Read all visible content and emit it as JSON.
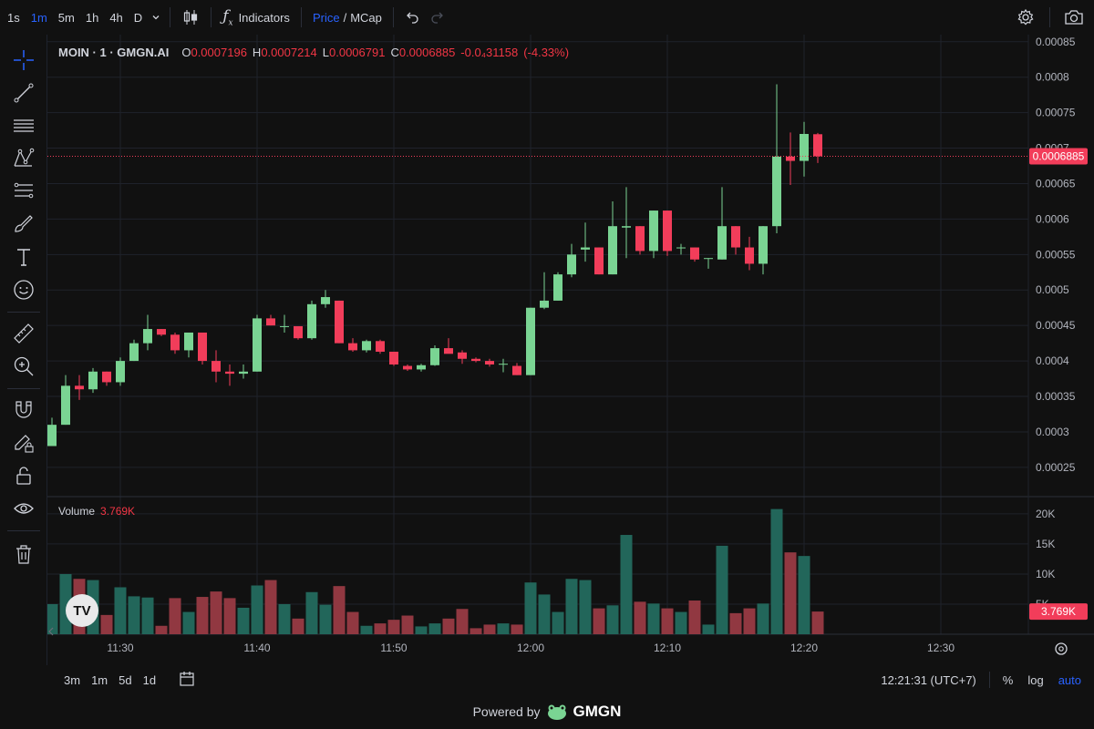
{
  "toolbar": {
    "intervals": [
      "1s",
      "1m",
      "5m",
      "1h",
      "4h",
      "D"
    ],
    "active_interval": "1m",
    "indicators_label": "Indicators",
    "price_label": "Price",
    "mcap_label": "MCap",
    "price_mcap_sep": "/"
  },
  "legend": {
    "symbol": "MOIN · 1 · GMGN.AI",
    "open_label": "O",
    "open": "0.0007196",
    "high_label": "H",
    "high": "0.0007214",
    "low_label": "L",
    "low": "0.0006791",
    "close_label": "C",
    "close": "0.0006885",
    "change": "-0.0₄31158",
    "change_pct": "(-4.33%)"
  },
  "volume_legend": {
    "label": "Volume",
    "value": "3.769K"
  },
  "price_badge": "0.0006885",
  "volume_badge": "3.769K",
  "bottom_bar": {
    "ranges": [
      "3m",
      "1m",
      "5d",
      "1d"
    ],
    "time": "12:21:31 (UTC+7)",
    "pct": "%",
    "log": "log",
    "auto": "auto"
  },
  "footer": {
    "powered": "Powered by",
    "brand": "GMGN"
  },
  "colors": {
    "up": "#7ad493",
    "down": "#f23d5a",
    "vol_up": "#22665a",
    "vol_down": "#913841",
    "accent": "#2962ff"
  },
  "chart_data": {
    "type": "candlestick",
    "title": "MOIN · 1 · GMGN.AI",
    "xlabel": "",
    "ylabel": "",
    "x_ticks": [
      "11:30",
      "11:40",
      "11:50",
      "12:00",
      "12:10",
      "12:20",
      "12:30"
    ],
    "y_ticks": [
      "0.00085",
      "0.0008",
      "0.00075",
      "0.0007",
      "0.00065",
      "0.0006",
      "0.00055",
      "0.0005",
      "0.00045",
      "0.0004",
      "0.00035",
      "0.0003",
      "0.00025"
    ],
    "ylim": [
      0.00021,
      0.00086
    ],
    "volume_ticks": [
      "20K",
      "15K",
      "10K",
      "5K"
    ],
    "volume_ylim": [
      0,
      21500
    ],
    "current_price": 0.0006885,
    "current_volume": 3769,
    "grid": true,
    "candles": [
      {
        "t": "11:25",
        "o": 0.00028,
        "h": 0.00032,
        "l": 0.00028,
        "c": 0.00031,
        "v": 5000
      },
      {
        "t": "11:26",
        "o": 0.00031,
        "h": 0.00038,
        "l": 0.00031,
        "c": 0.000365,
        "v": 10000
      },
      {
        "t": "11:27",
        "o": 0.000365,
        "h": 0.00038,
        "l": 0.000345,
        "c": 0.00036,
        "v": 9200
      },
      {
        "t": "11:28",
        "o": 0.00036,
        "h": 0.00039,
        "l": 0.000355,
        "c": 0.000385,
        "v": 9000
      },
      {
        "t": "11:29",
        "o": 0.000385,
        "h": 0.000385,
        "l": 0.000365,
        "c": 0.00037,
        "v": 3200
      },
      {
        "t": "11:30",
        "o": 0.00037,
        "h": 0.000405,
        "l": 0.000365,
        "c": 0.0004,
        "v": 7800
      },
      {
        "t": "11:31",
        "o": 0.0004,
        "h": 0.00043,
        "l": 0.0004,
        "c": 0.000425,
        "v": 6300
      },
      {
        "t": "11:32",
        "o": 0.000425,
        "h": 0.000465,
        "l": 0.000415,
        "c": 0.000445,
        "v": 6100
      },
      {
        "t": "11:33",
        "o": 0.000445,
        "h": 0.000445,
        "l": 0.000435,
        "c": 0.000437,
        "v": 1400
      },
      {
        "t": "11:34",
        "o": 0.000437,
        "h": 0.00044,
        "l": 0.00041,
        "c": 0.000415,
        "v": 6000
      },
      {
        "t": "11:35",
        "o": 0.000415,
        "h": 0.00044,
        "l": 0.000405,
        "c": 0.00044,
        "v": 3700
      },
      {
        "t": "11:36",
        "o": 0.00044,
        "h": 0.00044,
        "l": 0.000395,
        "c": 0.0004,
        "v": 6200
      },
      {
        "t": "11:37",
        "o": 0.0004,
        "h": 0.000415,
        "l": 0.00037,
        "c": 0.000385,
        "v": 7100
      },
      {
        "t": "11:38",
        "o": 0.000385,
        "h": 0.000395,
        "l": 0.000365,
        "c": 0.000382,
        "v": 6000
      },
      {
        "t": "11:39",
        "o": 0.000382,
        "h": 0.000395,
        "l": 0.000375,
        "c": 0.000385,
        "v": 4400
      },
      {
        "t": "11:40",
        "o": 0.000385,
        "h": 0.000465,
        "l": 0.000385,
        "c": 0.00046,
        "v": 8100
      },
      {
        "t": "11:41",
        "o": 0.00046,
        "h": 0.000465,
        "l": 0.00045,
        "c": 0.00045,
        "v": 9000
      },
      {
        "t": "11:42",
        "o": 0.000449,
        "h": 0.000465,
        "l": 0.00044,
        "c": 0.000449,
        "v": 5000
      },
      {
        "t": "11:43",
        "o": 0.000449,
        "h": 0.000449,
        "l": 0.00043,
        "c": 0.000432,
        "v": 2600
      },
      {
        "t": "11:44",
        "o": 0.000432,
        "h": 0.000485,
        "l": 0.00043,
        "c": 0.00048,
        "v": 7000
      },
      {
        "t": "11:45",
        "o": 0.00048,
        "h": 0.0005,
        "l": 0.000475,
        "c": 0.00049,
        "v": 4900
      },
      {
        "t": "11:46",
        "o": 0.000485,
        "h": 0.000485,
        "l": 0.000425,
        "c": 0.000425,
        "v": 8000
      },
      {
        "t": "11:47",
        "o": 0.000425,
        "h": 0.000432,
        "l": 0.000413,
        "c": 0.000415,
        "v": 3700
      },
      {
        "t": "11:48",
        "o": 0.000415,
        "h": 0.00043,
        "l": 0.000412,
        "c": 0.000428,
        "v": 1400
      },
      {
        "t": "11:49",
        "o": 0.000428,
        "h": 0.00043,
        "l": 0.00041,
        "c": 0.000413,
        "v": 1800
      },
      {
        "t": "11:50",
        "o": 0.000413,
        "h": 0.000413,
        "l": 0.000393,
        "c": 0.000395,
        "v": 2400
      },
      {
        "t": "11:51",
        "o": 0.000393,
        "h": 0.000395,
        "l": 0.000386,
        "c": 0.000388,
        "v": 3100
      },
      {
        "t": "11:52",
        "o": 0.000388,
        "h": 0.000396,
        "l": 0.000385,
        "c": 0.000394,
        "v": 1300
      },
      {
        "t": "11:53",
        "o": 0.000394,
        "h": 0.000422,
        "l": 0.000393,
        "c": 0.000418,
        "v": 1800
      },
      {
        "t": "11:54",
        "o": 0.000418,
        "h": 0.000432,
        "l": 0.000412,
        "c": 0.00041,
        "v": 2600
      },
      {
        "t": "11:55",
        "o": 0.000412,
        "h": 0.000415,
        "l": 0.000396,
        "c": 0.000403,
        "v": 4200
      },
      {
        "t": "11:56",
        "o": 0.000403,
        "h": 0.000405,
        "l": 0.000398,
        "c": 0.0004,
        "v": 1000
      },
      {
        "t": "11:57",
        "o": 0.0004,
        "h": 0.000403,
        "l": 0.000392,
        "c": 0.000395,
        "v": 1600
      },
      {
        "t": "11:58",
        "o": 0.000395,
        "h": 0.000403,
        "l": 0.000384,
        "c": 0.000396,
        "v": 1800
      },
      {
        "t": "11:59",
        "o": 0.000393,
        "h": 0.000397,
        "l": 0.00038,
        "c": 0.00038,
        "v": 1600
      },
      {
        "t": "12:00",
        "o": 0.00038,
        "h": 0.000475,
        "l": 0.00038,
        "c": 0.000475,
        "v": 8600
      },
      {
        "t": "12:01",
        "o": 0.000475,
        "h": 0.000525,
        "l": 0.000473,
        "c": 0.000485,
        "v": 6600
      },
      {
        "t": "12:02",
        "o": 0.000485,
        "h": 0.000525,
        "l": 0.000485,
        "c": 0.000522,
        "v": 3700
      },
      {
        "t": "12:03",
        "o": 0.000522,
        "h": 0.000565,
        "l": 0.000518,
        "c": 0.00055,
        "v": 9200
      },
      {
        "t": "12:04",
        "o": 0.000557,
        "h": 0.000595,
        "l": 0.00054,
        "c": 0.00056,
        "v": 9000
      },
      {
        "t": "12:05",
        "o": 0.00056,
        "h": 0.00056,
        "l": 0.000522,
        "c": 0.000522,
        "v": 4300
      },
      {
        "t": "12:06",
        "o": 0.000522,
        "h": 0.000625,
        "l": 0.000522,
        "c": 0.00059,
        "v": 4800
      },
      {
        "t": "12:07",
        "o": 0.000588,
        "h": 0.000645,
        "l": 0.000545,
        "c": 0.00059,
        "v": 16500
      },
      {
        "t": "12:08",
        "o": 0.00059,
        "h": 0.00059,
        "l": 0.00055,
        "c": 0.000555,
        "v": 5400
      },
      {
        "t": "12:09",
        "o": 0.000555,
        "h": 0.000612,
        "l": 0.000545,
        "c": 0.000612,
        "v": 5100
      },
      {
        "t": "12:10",
        "o": 0.000612,
        "h": 0.000612,
        "l": 0.000548,
        "c": 0.000555,
        "v": 4300
      },
      {
        "t": "12:11",
        "o": 0.00056,
        "h": 0.000565,
        "l": 0.00055,
        "c": 0.00056,
        "v": 3700
      },
      {
        "t": "12:12",
        "o": 0.00056,
        "h": 0.00056,
        "l": 0.00054,
        "c": 0.000543,
        "v": 5600
      },
      {
        "t": "12:13",
        "o": 0.000545,
        "h": 0.000545,
        "l": 0.00053,
        "c": 0.000545,
        "v": 1600
      },
      {
        "t": "12:14",
        "o": 0.000543,
        "h": 0.000645,
        "l": 0.000543,
        "c": 0.00059,
        "v": 14700
      },
      {
        "t": "12:15",
        "o": 0.00059,
        "h": 0.00059,
        "l": 0.00055,
        "c": 0.00056,
        "v": 3500
      },
      {
        "t": "12:16",
        "o": 0.00056,
        "h": 0.000575,
        "l": 0.000528,
        "c": 0.000537,
        "v": 4300
      },
      {
        "t": "12:17",
        "o": 0.000537,
        "h": 0.00059,
        "l": 0.000522,
        "c": 0.00059,
        "v": 5100
      },
      {
        "t": "12:18",
        "o": 0.00059,
        "h": 0.00079,
        "l": 0.00058,
        "c": 0.000688,
        "v": 20800
      },
      {
        "t": "12:19",
        "o": 0.000688,
        "h": 0.000722,
        "l": 0.000648,
        "c": 0.000682,
        "v": 13600
      },
      {
        "t": "12:20",
        "o": 0.000682,
        "h": 0.000737,
        "l": 0.00066,
        "c": 0.00072,
        "v": 13000
      },
      {
        "t": "12:21",
        "o": 0.0007196,
        "h": 0.0007214,
        "l": 0.0006791,
        "c": 0.0006885,
        "v": 3769
      }
    ]
  }
}
